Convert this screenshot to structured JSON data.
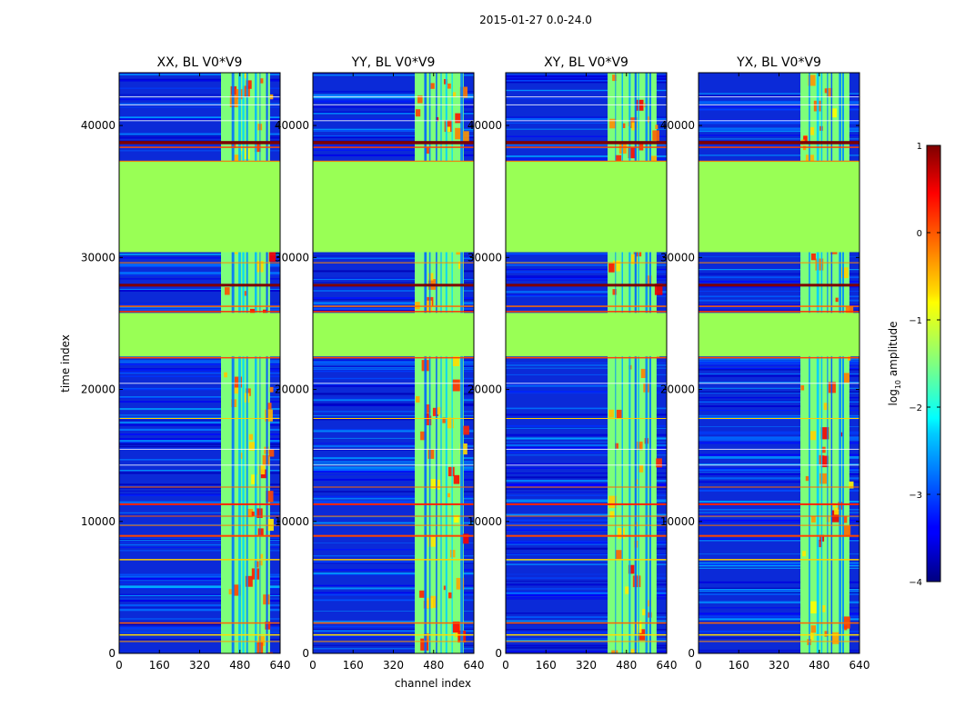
{
  "figure_title": "2015-01-27 0.0-24.0",
  "chart_data": [
    {
      "type": "heatmap",
      "title": "XX, BL V0*V9",
      "xlabel": "channel index",
      "ylabel": "time index",
      "xlim": [
        0,
        640
      ],
      "ylim": [
        0,
        44000
      ],
      "xticks": [
        0,
        160,
        320,
        480,
        640
      ],
      "yticks": [
        0,
        10000,
        20000,
        30000,
        40000
      ],
      "lit_channel_range": [
        405,
        600
      ],
      "fill_time_ranges": [
        [
          22500,
          25800
        ],
        [
          30400,
          37300
        ]
      ]
    },
    {
      "type": "heatmap",
      "title": "YY, BL V0*V9",
      "xlabel": "channel index",
      "ylabel": "",
      "xlim": [
        0,
        640
      ],
      "ylim": [
        0,
        44000
      ],
      "xticks": [
        0,
        160,
        320,
        480,
        640
      ],
      "yticks": [
        0,
        10000,
        20000,
        30000,
        40000
      ],
      "lit_channel_range": [
        405,
        600
      ],
      "fill_time_ranges": [
        [
          22500,
          25800
        ],
        [
          30400,
          37300
        ]
      ]
    },
    {
      "type": "heatmap",
      "title": "XY, BL V0*V9",
      "xlabel": "channel index",
      "ylabel": "",
      "xlim": [
        0,
        640
      ],
      "ylim": [
        0,
        44000
      ],
      "xticks": [
        0,
        160,
        320,
        480,
        640
      ],
      "yticks": [
        0,
        10000,
        20000,
        30000,
        40000
      ],
      "lit_channel_range": [
        405,
        600
      ],
      "fill_time_ranges": [
        [
          22500,
          25800
        ],
        [
          30400,
          37300
        ]
      ]
    },
    {
      "type": "heatmap",
      "title": "YX, BL V0*V9",
      "xlabel": "channel index",
      "ylabel": "",
      "xlim": [
        0,
        640
      ],
      "ylim": [
        0,
        44000
      ],
      "xticks": [
        0,
        160,
        320,
        480,
        640
      ],
      "yticks": [
        0,
        10000,
        20000,
        30000,
        40000
      ],
      "lit_channel_range": [
        405,
        600
      ],
      "fill_time_ranges": [
        [
          22500,
          25800
        ],
        [
          30400,
          37300
        ]
      ]
    }
  ],
  "colorbar": {
    "label_prefix": "log",
    "label_sub": "10",
    "label_suffix": " amplitude",
    "range": [
      -4,
      1
    ],
    "ticks": [
      1,
      0,
      -1,
      -2,
      -3,
      -4
    ],
    "tick_labels": [
      "1",
      "0",
      "−1",
      "−2",
      "−3",
      "−4"
    ],
    "colormap": "jet"
  },
  "colors": {
    "background": "#ffffff",
    "fill_value": "#99ff55",
    "dark_red": "#7f0000",
    "dark_blue": "#00007f"
  }
}
